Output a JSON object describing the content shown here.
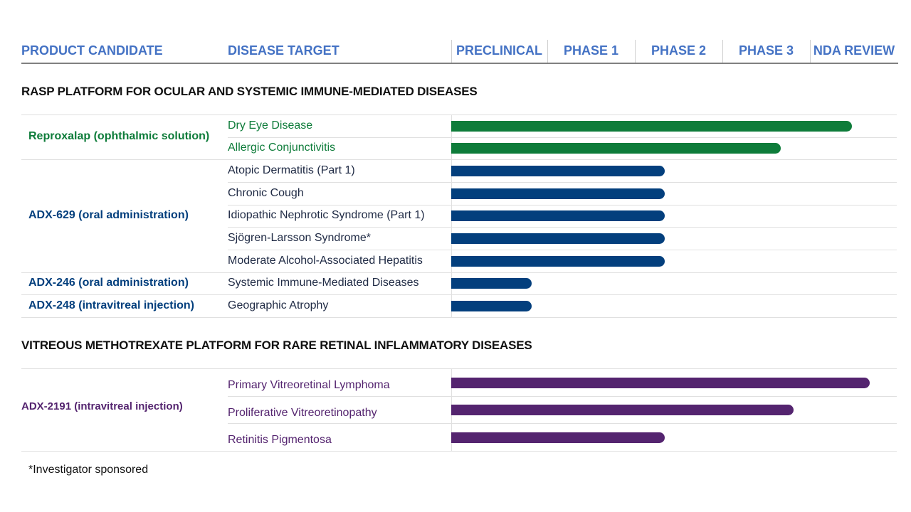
{
  "header": {
    "product_candidate": "PRODUCT CANDIDATE",
    "disease_target": "DISEASE TARGET",
    "phases": [
      "PRECLINICAL",
      "PHASE 1",
      "PHASE 2",
      "PHASE 3",
      "NDA REVIEW"
    ]
  },
  "colors": {
    "header_text": "#4472c4",
    "reproxalap": "#0e7c3a",
    "adx_rasp": "#033f7d",
    "adx_2191": "#54246f",
    "grid": "#e0e0e0"
  },
  "sections": [
    {
      "title": "RASP PLATFORM FOR OCULAR AND SYSTEMIC IMMUNE-MEDIATED DISEASES"
    },
    {
      "title": "VITREOUS METHOTREXATE PLATFORM FOR RARE RETINAL INFLAMMATORY DISEASES"
    }
  ],
  "products": [
    {
      "name": "Reproxalap (ophthalmic solution)",
      "color": "#0e7c3a"
    },
    {
      "name": "ADX-629 (oral administration)",
      "color": "#033f7d"
    },
    {
      "name": "ADX-246 (oral administration)",
      "color": "#033f7d"
    },
    {
      "name": "ADX-248 (intravitreal injection)",
      "color": "#033f7d"
    },
    {
      "name": "ADX-2191 (intravitreal  injection)",
      "color": "#54246f"
    }
  ],
  "chart_data": {
    "type": "bar",
    "orientation": "horizontal",
    "x_scale": "development stage (0 = start of Preclinical, 5 = end of NDA Review)",
    "categories": [
      "Dry Eye Disease",
      "Allergic Conjunctivitis",
      "Atopic Dermatitis (Part 1)",
      "Chronic Cough",
      "Idiopathic Nephrotic Syndrome (Part 1)",
      "Sjögren-Larsson Syndrome*",
      "Moderate Alcohol-Associated Hepatitis",
      "Systemic Immune-Mediated Diseases",
      "Geographic Atrophy",
      "Primary Vitreoretinal Lymphoma",
      "Proliferative Vitreoretinopathy",
      "Retinitis Pigmentosa"
    ],
    "values": [
      4.5,
      3.7,
      2.4,
      2.4,
      2.4,
      2.4,
      2.4,
      0.9,
      0.9,
      4.7,
      3.85,
      2.4
    ],
    "product_of_row": [
      0,
      0,
      1,
      1,
      1,
      1,
      1,
      2,
      3,
      4,
      4,
      4
    ],
    "xlim": [
      0,
      5
    ]
  },
  "footnote": "*Investigator sponsored"
}
